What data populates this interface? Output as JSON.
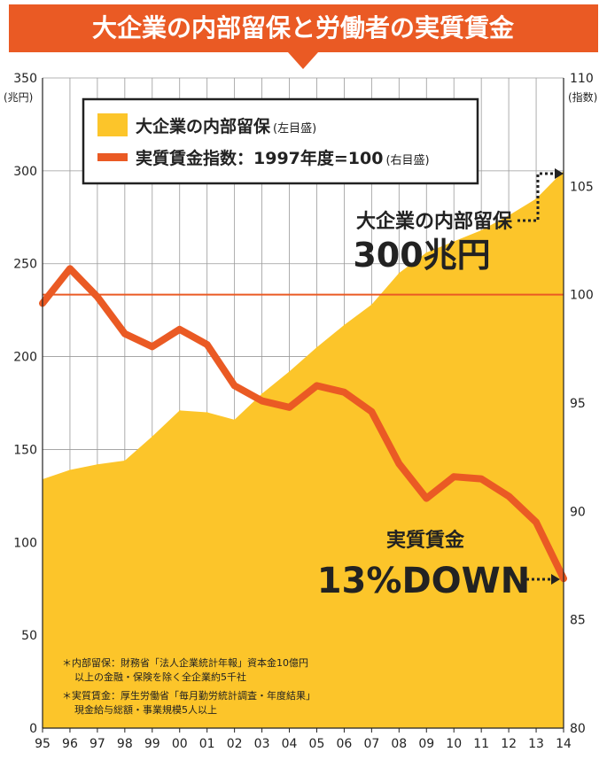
{
  "chart_data": {
    "type": "area",
    "title": "大企業の内部留保と労働者の実質賃金",
    "x": [
      "95",
      "96",
      "97",
      "98",
      "99",
      "00",
      "01",
      "02",
      "03",
      "04",
      "05",
      "06",
      "07",
      "08",
      "09",
      "10",
      "11",
      "12",
      "13",
      "14"
    ],
    "left_axis": {
      "unit": "(兆円)",
      "ylim": [
        0,
        350
      ],
      "ticks": [
        0,
        50,
        100,
        150,
        200,
        250,
        300,
        350
      ]
    },
    "right_axis": {
      "unit": "(指数)",
      "ylim": [
        80,
        110
      ],
      "ticks": [
        80,
        85,
        90,
        95,
        100,
        105,
        110
      ]
    },
    "series": [
      {
        "name": "大企業の内部留保",
        "axis_note": "(左目盛)",
        "type": "area",
        "color": "#FCC52A",
        "values": [
          134,
          139,
          142,
          144,
          157,
          171,
          170,
          166,
          180,
          192,
          205,
          217,
          228,
          245,
          256,
          262,
          268,
          276,
          285,
          300
        ]
      },
      {
        "name": "実質賃金指数：1997年度=100",
        "axis_note": "(右目盛)",
        "type": "line",
        "color": "#EA5A24",
        "values": [
          99.6,
          101.2,
          99.9,
          98.2,
          97.6,
          98.4,
          97.7,
          95.8,
          95.1,
          94.8,
          95.8,
          95.5,
          94.6,
          92.2,
          90.6,
          91.6,
          91.5,
          90.7,
          89.5,
          86.9
        ]
      }
    ],
    "reference_line": {
      "value": 100,
      "axis": "right",
      "color": "#EA5A24"
    },
    "annotations": {
      "reserve_label": "大企業の内部留保",
      "reserve_value": "300兆円",
      "wage_label": "実質賃金",
      "wage_value": "13%DOWN"
    },
    "notes": [
      "＊内部留保：財務省「法人企業統計年報」資本金10億円",
      "以上の金融・保険を除く全企業約5千社",
      "＊実質賃金：厚生労働省「毎月勤労統計調査・年度結果」",
      "現金給与総額・事業規模5人以上"
    ],
    "grid": true,
    "legend_position": "top-left"
  },
  "colors": {
    "banner": "#EA5A24",
    "area": "#FCC52A",
    "line": "#EA5A24",
    "grid": "#9a9a9a",
    "text": "#222222"
  }
}
